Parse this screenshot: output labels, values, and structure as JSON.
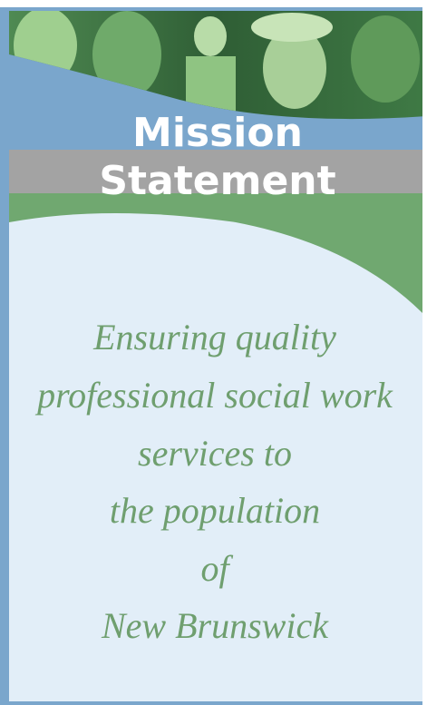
{
  "heading": [
    "Mission",
    "Statement"
  ],
  "statement": [
    "Ensuring quality",
    "professional social work",
    "services to",
    "the population",
    "of",
    "New Brunswick"
  ]
}
